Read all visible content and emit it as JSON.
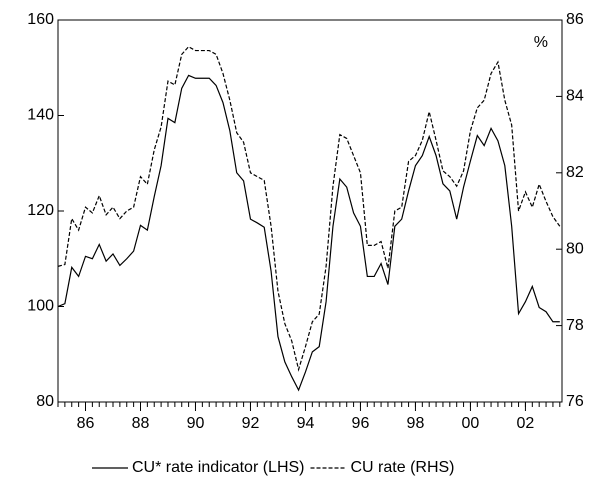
{
  "chart_data": {
    "type": "line",
    "annotation": "%",
    "x": [
      1985,
      1985.25,
      1985.5,
      1985.75,
      1986,
      1986.25,
      1986.5,
      1986.75,
      1987,
      1987.25,
      1987.5,
      1987.75,
      1988,
      1988.25,
      1988.5,
      1988.75,
      1989,
      1989.25,
      1989.5,
      1989.75,
      1990,
      1990.25,
      1990.5,
      1990.75,
      1991,
      1991.25,
      1991.5,
      1991.75,
      1992,
      1992.25,
      1992.5,
      1992.75,
      1993,
      1993.25,
      1993.5,
      1993.75,
      1994,
      1994.25,
      1994.5,
      1994.75,
      1995,
      1995.25,
      1995.5,
      1995.75,
      1996,
      1996.25,
      1996.5,
      1996.75,
      1997,
      1997.25,
      1997.5,
      1997.75,
      1998,
      1998.25,
      1998.5,
      1998.75,
      1999,
      1999.25,
      1999.5,
      1999.75,
      2000,
      2000.25,
      2000.5,
      2000.75,
      2001,
      2001.25,
      2001.5,
      2001.75,
      2002,
      2002.25,
      2002.5,
      2002.75,
      2003,
      2003.25
    ],
    "series": [
      {
        "name": "CU* rate indicator (LHS)",
        "color": "#000000",
        "line_style": "solid",
        "values": [
          100,
          100.6,
          108.2,
          106.3,
          110.5,
          110,
          113,
          109.5,
          111,
          108.6,
          110,
          111.6,
          117,
          116,
          123,
          129.5,
          139.4,
          138.5,
          145.7,
          148.4,
          147.8,
          147.8,
          147.8,
          146.3,
          142.7,
          136.8,
          128,
          126.3,
          118.3,
          117.5,
          116.6,
          107.4,
          93.7,
          88.4,
          85.3,
          82.5,
          86.3,
          90.5,
          91.6,
          101,
          116.8,
          126.7,
          125,
          119.6,
          116.8,
          106.3,
          106.3,
          109,
          104.6,
          116.8,
          118.3,
          124.2,
          129.5,
          131.6,
          135.6,
          131.6,
          125.7,
          124.2,
          118.3,
          125,
          130.5,
          135.8,
          133.7,
          137.3,
          134.7,
          129.5,
          116.8,
          98.5,
          101,
          104.2,
          99.8,
          98.9,
          96.8,
          96.8
        ]
      },
      {
        "name": "CU rate (RHS)",
        "color": "#000000",
        "line_style": "dashed",
        "axis": "y2",
        "values": [
          79.55,
          79.6,
          80.8,
          80.5,
          81.1,
          80.95,
          81.4,
          80.9,
          81.1,
          80.8,
          81,
          81.1,
          81.9,
          81.7,
          82.6,
          83.2,
          84.4,
          84.3,
          85.1,
          85.3,
          85.2,
          85.2,
          85.2,
          85.1,
          84.6,
          83.9,
          83.05,
          82.8,
          82,
          81.9,
          81.8,
          80.6,
          78.9,
          78.05,
          77.6,
          76.85,
          77.45,
          78.1,
          78.3,
          79.55,
          81.65,
          83,
          82.9,
          82.45,
          82,
          80.1,
          80.1,
          80.2,
          79.5,
          81,
          81.1,
          82.3,
          82.45,
          82.85,
          83.6,
          82.85,
          82.05,
          81.9,
          81.65,
          82.05,
          83.1,
          83.7,
          83.9,
          84.6,
          84.9,
          83.9,
          83.25,
          81,
          81.5,
          81.1,
          81.7,
          81.25,
          80.85,
          80.6
        ]
      }
    ],
    "xlim": [
      1985,
      2003.33
    ],
    "xticks": [
      {
        "value": 1986,
        "label": "86"
      },
      {
        "value": 1988,
        "label": "88"
      },
      {
        "value": 1990,
        "label": "90"
      },
      {
        "value": 1992,
        "label": "92"
      },
      {
        "value": 1994,
        "label": "94"
      },
      {
        "value": 1996,
        "label": "96"
      },
      {
        "value": 1998,
        "label": "98"
      },
      {
        "value": 2000,
        "label": "00"
      },
      {
        "value": 2002,
        "label": "02"
      }
    ],
    "ylim": [
      80,
      160
    ],
    "yticks": [
      80,
      100,
      120,
      140,
      160
    ],
    "y2lim": [
      76,
      86
    ],
    "y2ticks": [
      76,
      78,
      80,
      82,
      84,
      86
    ],
    "grid": false
  }
}
